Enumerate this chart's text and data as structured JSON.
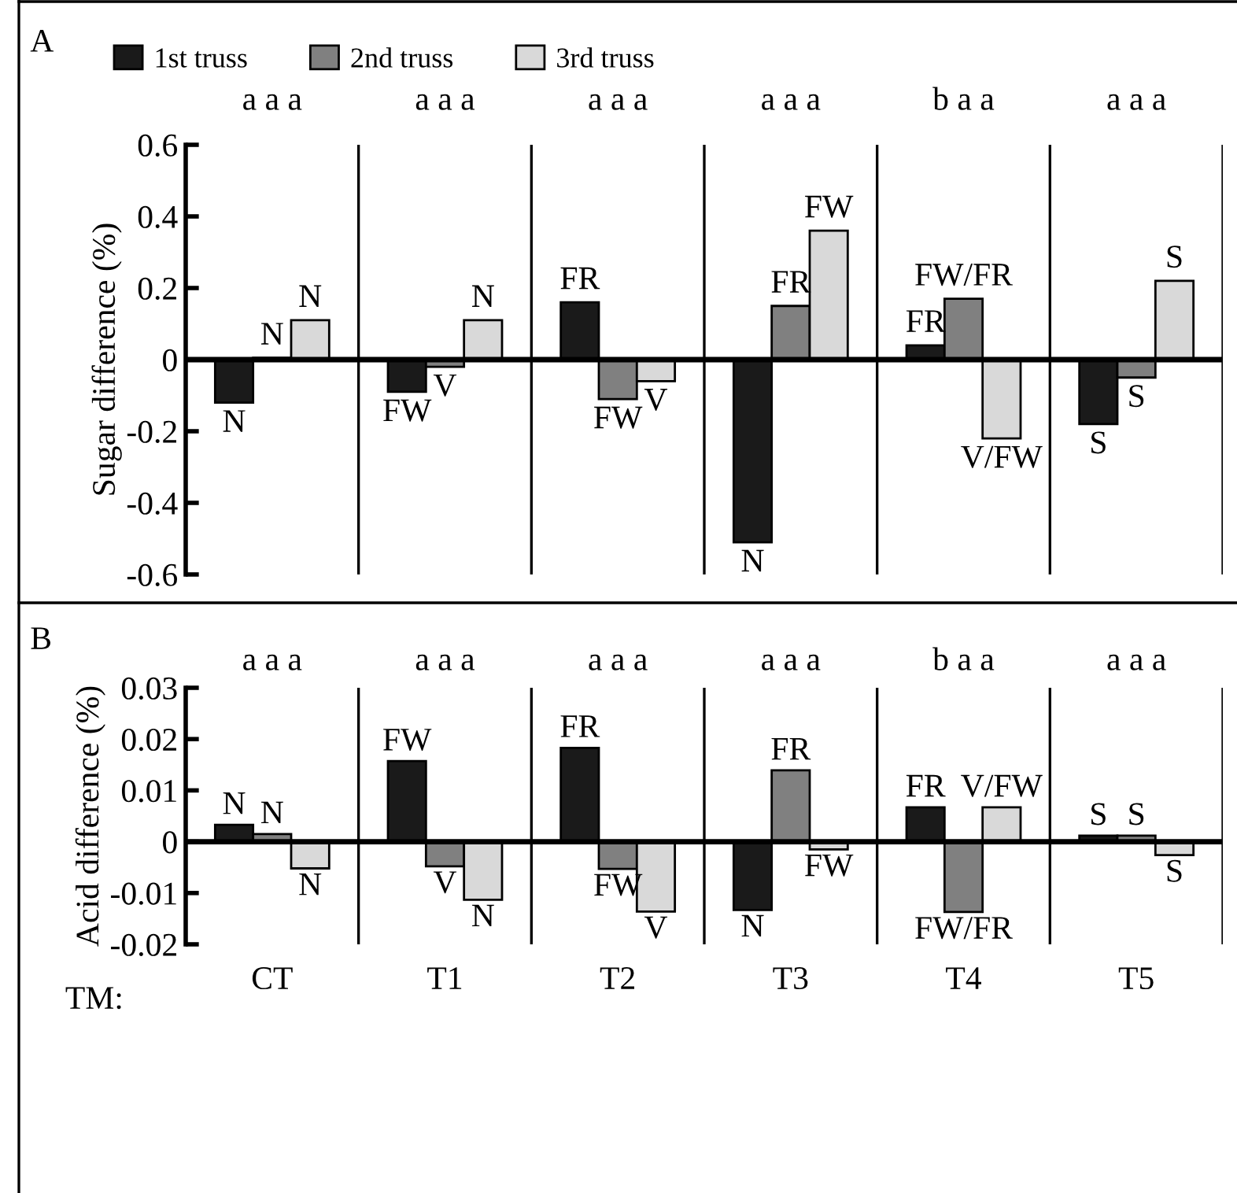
{
  "chart_data": [
    {
      "type": "bar",
      "title": "A",
      "ylabel": "Sugar difference (%)",
      "series": [
        {
          "name": "1st truss",
          "color": "#1a1a1a",
          "values": [
            -0.12,
            -0.09,
            0.16,
            -0.51,
            0.04,
            -0.18
          ],
          "value_labels": [
            "N",
            "FW",
            "FR",
            "N",
            "FR",
            "S"
          ]
        },
        {
          "name": "2nd truss",
          "color": "#808080",
          "values": [
            0.005,
            -0.02,
            -0.11,
            0.15,
            0.17,
            -0.05
          ],
          "value_labels": [
            "N",
            "V",
            "FW",
            "FR",
            "FW/FR",
            "S"
          ]
        },
        {
          "name": "3rd truss",
          "color": "#d9d9d9",
          "values": [
            0.11,
            0.11,
            -0.06,
            0.36,
            -0.22,
            0.22
          ],
          "value_labels": [
            "N",
            "N",
            "V",
            "FW",
            "V/FW",
            "S"
          ]
        }
      ],
      "annotations": [
        "a a a",
        "a a a",
        "a a a",
        "a a a",
        "b a a",
        "a a a"
      ],
      "ylim": [
        -0.6,
        0.6
      ],
      "yticks": [
        {
          "value": -0.6,
          "label": "-0.6"
        },
        {
          "value": -0.4,
          "label": "-0.4"
        },
        {
          "value": -0.2,
          "label": "-0.2"
        },
        0,
        0.2,
        0.4,
        0.6
      ],
      "legend": "top",
      "tick_labels": "y",
      "grid": "x"
    },
    {
      "type": "bar",
      "title": "B",
      "ylabel": "Acid difference (%)",
      "xlabel": "TM:",
      "categories": [
        "CT",
        "T1",
        "T2",
        "T3",
        "T4",
        "T5"
      ],
      "series": [
        {
          "color": "#1a1a1a",
          "values": [
            0.0033,
            0.0157,
            0.0183,
            -0.0133,
            0.0067,
            0.0012
          ],
          "value_labels": [
            "N",
            "FW",
            "FR",
            "N",
            "FR",
            "S"
          ]
        },
        {
          "color": "#808080",
          "values": [
            0.0015,
            -0.0048,
            -0.0053,
            0.0139,
            -0.0137,
            0.0012
          ],
          "value_labels": [
            "N",
            "V",
            "FW",
            "FR",
            "FW/FR",
            "S"
          ]
        },
        {
          "color": "#d9d9d9",
          "values": [
            -0.0052,
            -0.0113,
            -0.0136,
            -0.0015,
            0.0067,
            -0.0026
          ],
          "value_labels": [
            "N",
            "N",
            "V",
            "FW",
            "V/FW",
            "S"
          ]
        }
      ],
      "annotations": [
        "a a a",
        "a a a",
        "a a a",
        "a a a",
        "b a a",
        "a a a"
      ],
      "ylim": [
        -0.02,
        0.03
      ],
      "yticks": [
        {
          "value": -0.02,
          "label": "-0.02"
        },
        {
          "value": -0.01,
          "label": "-0.01"
        },
        0,
        0.01,
        0.02,
        0.03
      ],
      "grid": "x"
    }
  ]
}
